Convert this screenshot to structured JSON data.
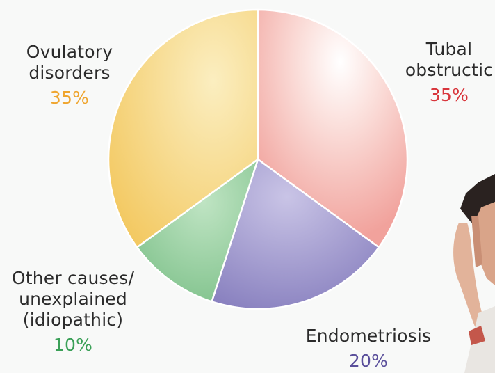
{
  "chart_data": {
    "type": "pie",
    "slices": [
      {
        "label": "Tubal obstructic",
        "value": 35,
        "percent_label": "35%",
        "color": "#f3a8a2",
        "pct_color": "#d8353b"
      },
      {
        "label": "Endometriosis",
        "value": 20,
        "percent_label": "20%",
        "color": "#8f88c4",
        "pct_color": "#5a4f9b"
      },
      {
        "label": "Other causes/\nunexplained\n(idiopathic)",
        "value": 10,
        "percent_label": "10%",
        "color": "#84c48e",
        "pct_color": "#3aa057"
      },
      {
        "label": "Ovulatory\ndisorders",
        "value": 35,
        "percent_label": "35%",
        "color": "#f4cf6e",
        "pct_color": "#efa52e"
      }
    ],
    "start": "12 o'clock",
    "direction": "clockwise",
    "legend": "none"
  }
}
